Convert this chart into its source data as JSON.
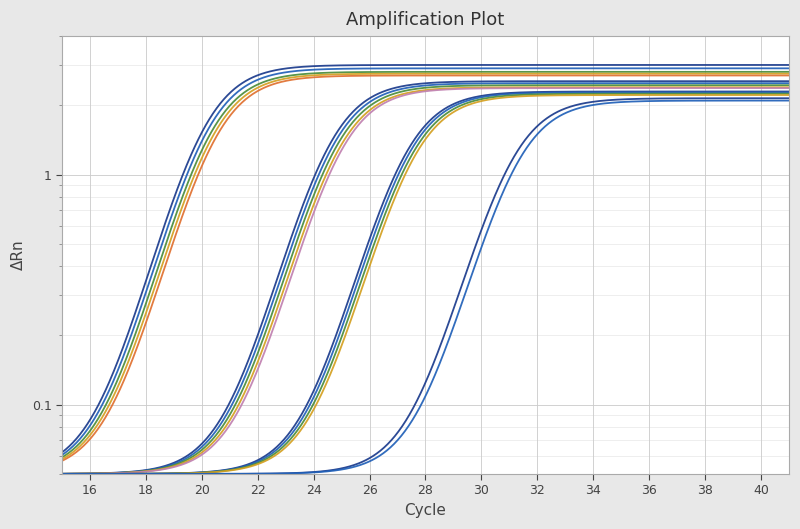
{
  "title": "Amplification Plot",
  "xlabel": "Cycle",
  "ylabel": "ΔRn",
  "xlim": [
    15,
    41
  ],
  "ylim_log": [
    0.05,
    4.0
  ],
  "xticks": [
    16,
    18,
    20,
    22,
    24,
    26,
    28,
    30,
    32,
    34,
    36,
    38,
    40
  ],
  "background_color": "#e8e8e8",
  "plot_bg_color": "#ffffff",
  "grid_color": "#cccccc",
  "title_fontsize": 13,
  "axis_label_fontsize": 11,
  "curves": [
    {
      "ct": 20.0,
      "plateau": 3.0,
      "color": "#1a3a8c",
      "lw": 1.3
    },
    {
      "ct": 20.1,
      "plateau": 2.9,
      "color": "#2060b8",
      "lw": 1.3
    },
    {
      "ct": 20.2,
      "plateau": 2.8,
      "color": "#4a8c3a",
      "lw": 1.3
    },
    {
      "ct": 20.3,
      "plateau": 2.75,
      "color": "#d4a020",
      "lw": 1.3
    },
    {
      "ct": 20.4,
      "plateau": 2.7,
      "color": "#e07030",
      "lw": 1.3
    },
    {
      "ct": 24.5,
      "plateau": 2.55,
      "color": "#1a3a8c",
      "lw": 1.3
    },
    {
      "ct": 24.6,
      "plateau": 2.5,
      "color": "#2060b8",
      "lw": 1.3
    },
    {
      "ct": 24.7,
      "plateau": 2.45,
      "color": "#4a8c3a",
      "lw": 1.3
    },
    {
      "ct": 24.8,
      "plateau": 2.4,
      "color": "#d4a020",
      "lw": 1.3
    },
    {
      "ct": 24.9,
      "plateau": 2.38,
      "color": "#c080b0",
      "lw": 1.3
    },
    {
      "ct": 27.2,
      "plateau": 2.3,
      "color": "#1a3a8c",
      "lw": 1.3
    },
    {
      "ct": 27.3,
      "plateau": 2.28,
      "color": "#2060b8",
      "lw": 1.3
    },
    {
      "ct": 27.4,
      "plateau": 2.25,
      "color": "#4a8c3a",
      "lw": 1.3
    },
    {
      "ct": 27.5,
      "plateau": 2.22,
      "color": "#d4a020",
      "lw": 1.3
    },
    {
      "ct": 31.0,
      "plateau": 2.15,
      "color": "#1a3a8c",
      "lw": 1.3
    },
    {
      "ct": 31.2,
      "plateau": 2.1,
      "color": "#2060b8",
      "lw": 1.3
    }
  ],
  "steepness": 1.1,
  "baseline": 0.05
}
